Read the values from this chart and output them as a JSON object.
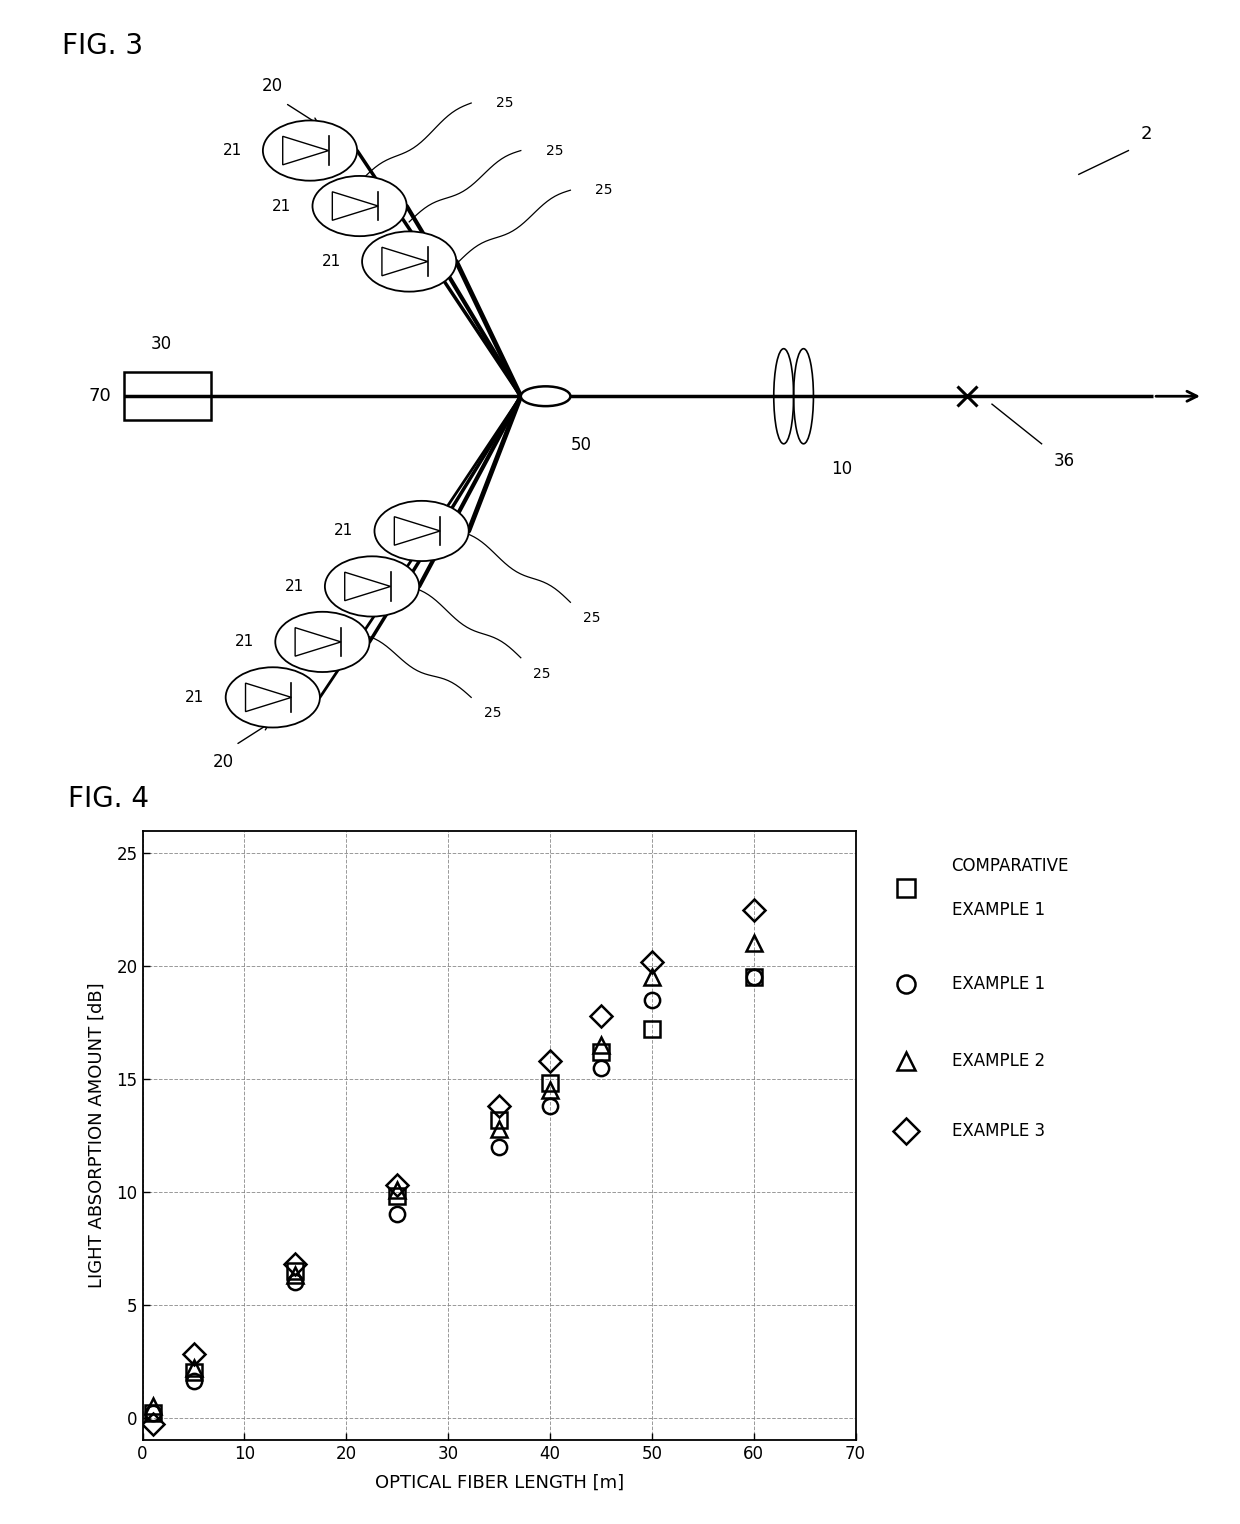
{
  "fig3_title": "FIG. 3",
  "fig4_title": "FIG. 4",
  "background_color": "#ffffff",
  "plot_xlabel": "OPTICAL FIBER LENGTH [m]",
  "plot_ylabel": "LIGHT ABSORPTION AMOUNT [dB]",
  "plot_xlim": [
    0,
    70
  ],
  "plot_ylim": [
    -1,
    26
  ],
  "plot_xticks": [
    0,
    10,
    20,
    30,
    40,
    50,
    60,
    70
  ],
  "plot_yticks": [
    0,
    5,
    10,
    15,
    20,
    25
  ],
  "comp_x": [
    1,
    5,
    15,
    25,
    35,
    40,
    45,
    50,
    60
  ],
  "comp_y": [
    0.2,
    2.0,
    6.5,
    9.8,
    13.2,
    14.8,
    16.2,
    17.2,
    19.5
  ],
  "ex1_x": [
    1,
    5,
    15,
    25,
    35,
    40,
    45,
    50,
    60
  ],
  "ex1_y": [
    0.2,
    1.6,
    6.0,
    9.0,
    12.0,
    13.8,
    15.5,
    18.5,
    19.5
  ],
  "ex2_x": [
    1,
    5,
    15,
    25,
    35,
    40,
    45,
    50,
    60
  ],
  "ex2_y": [
    0.5,
    2.2,
    6.3,
    10.1,
    12.8,
    14.5,
    16.5,
    19.5,
    21.0
  ],
  "ex3_x": [
    1,
    5,
    15,
    25,
    35,
    40,
    45,
    50,
    60
  ],
  "ex3_y": [
    -0.3,
    2.8,
    6.8,
    10.3,
    13.8,
    15.8,
    17.8,
    20.2,
    22.5
  ]
}
